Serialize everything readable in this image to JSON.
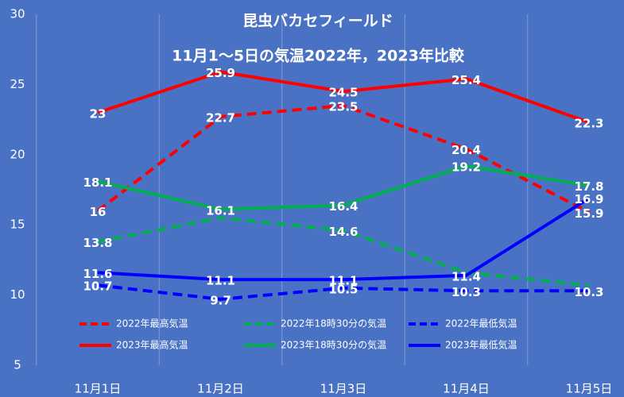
{
  "chart_data": {
    "type": "line",
    "title": "昆虫バカセフィールド",
    "subtitle": "11月1〜5日の気温2022年，2023年比較",
    "categories": [
      "11月1日",
      "11月2日",
      "11月3日",
      "11月4日",
      "11月5日"
    ],
    "series": [
      {
        "name": "2022年最高気温",
        "color": "#ff0000",
        "dash": true,
        "values": [
          16,
          22.7,
          23.5,
          20.4,
          15.9
        ]
      },
      {
        "name": "2022年18時30分の気温",
        "color": "#00b050",
        "dash": true,
        "values": [
          13.8,
          15.5,
          14.6,
          11.6,
          10.7
        ],
        "value_labels": [
          "13.8",
          null,
          "14.6",
          null,
          null
        ]
      },
      {
        "name": "2022年最低気温",
        "color": "#0000ff",
        "dash": true,
        "values": [
          10.7,
          9.7,
          10.5,
          10.3,
          10.3
        ]
      },
      {
        "name": "2023年最高気温",
        "color": "#ff0000",
        "dash": false,
        "values": [
          23,
          25.9,
          24.5,
          25.4,
          22.3
        ]
      },
      {
        "name": "2023年18時30分の気温",
        "color": "#00b050",
        "dash": false,
        "values": [
          18.1,
          16.1,
          16.4,
          19.2,
          17.8
        ]
      },
      {
        "name": "2023年最低気温",
        "color": "#0000ff",
        "dash": false,
        "values": [
          11.6,
          11.1,
          11.1,
          11.4,
          16.9
        ]
      }
    ],
    "ylim": [
      5,
      30
    ],
    "yticks": [
      5,
      10,
      15,
      20,
      25,
      30
    ],
    "grid": true
  }
}
